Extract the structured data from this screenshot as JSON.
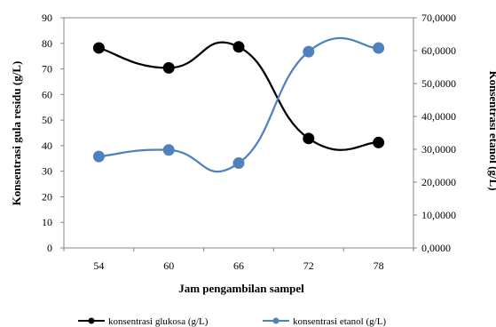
{
  "chart_data": {
    "type": "line",
    "title": "",
    "categories": [
      "54",
      "60",
      "66",
      "72",
      "78"
    ],
    "xlabel": "Jam pengambilan sampel",
    "ylabel_left": "Konsentrasi gula  residu (g/L)",
    "ylabel_right": "Konsentrasi etanol (g/L)",
    "ylim_left": [
      0,
      90
    ],
    "yticks_left": [
      "0",
      "10",
      "20",
      "30",
      "40",
      "50",
      "60",
      "70",
      "80",
      "90"
    ],
    "ylim_right": [
      0,
      70
    ],
    "yticks_right": [
      "0,0000",
      "10,0000",
      "20,0000",
      "30,0000",
      "40,0000",
      "50,0000",
      "60,0000",
      "70,0000"
    ],
    "grid": false,
    "legend_position": "bottom",
    "smooth": true,
    "series": [
      {
        "name": "konsentrasi glukosa (g/L)",
        "axis": "left",
        "color": "#000000",
        "values": [
          78.2,
          70.4,
          78.6,
          42.8,
          41.2
        ]
      },
      {
        "name": "konsentrasi etanol (g/L)",
        "axis": "right",
        "color": "#4f81bd",
        "values": [
          27.8,
          29.8,
          25.8,
          59.7,
          60.8
        ]
      }
    ]
  }
}
